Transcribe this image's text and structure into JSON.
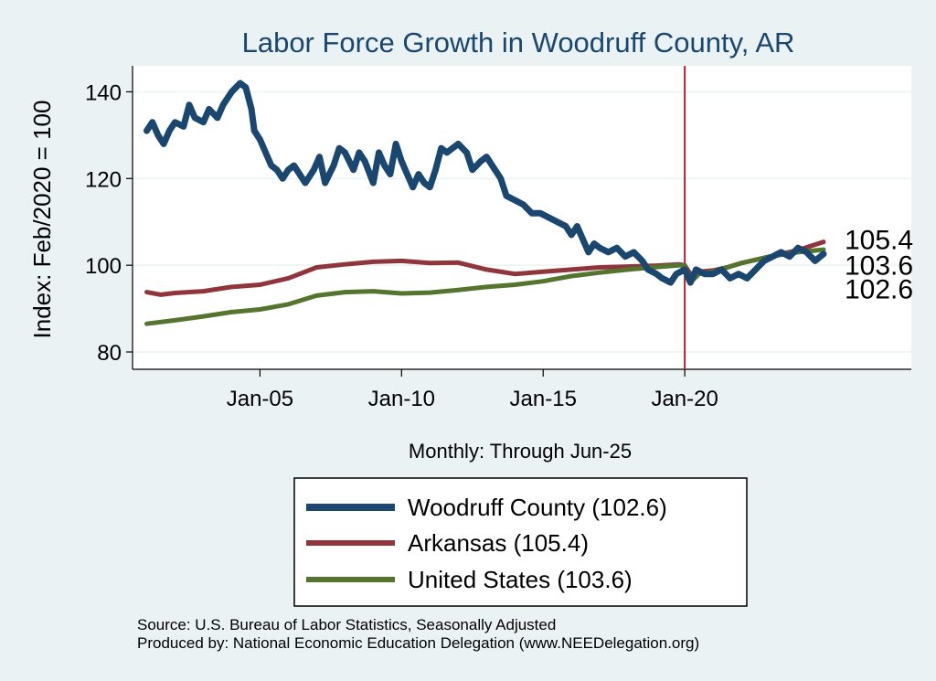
{
  "chart_data": {
    "type": "line",
    "title": "Labor Force Growth in Woodruff  County, AR",
    "xlabel": "Monthly: Through Jun-25",
    "ylabel": "Index: Feb/2020 = 100",
    "ylim": [
      76,
      146
    ],
    "yticks": [
      "80",
      "100",
      "120",
      "140"
    ],
    "xticks": [
      {
        "label": "Jan-05",
        "year": 2005.0
      },
      {
        "label": "Jan-10",
        "year": 2010.0
      },
      {
        "label": "Jan-15",
        "year": 2015.0
      },
      {
        "label": "Jan-20",
        "year": 2020.0
      }
    ],
    "xlim": [
      2000.5,
      2028.0
    ],
    "reference_line": {
      "year": 2020.0,
      "color": "#b22033"
    },
    "grid": "horizontal",
    "legend_position": "bottom",
    "series": [
      {
        "name": "Woodruff  County (102.6)",
        "color": "#1a476f",
        "end_label": "102.6",
        "points": [
          [
            2001.0,
            131
          ],
          [
            2001.2,
            133
          ],
          [
            2001.4,
            130
          ],
          [
            2001.6,
            128
          ],
          [
            2001.8,
            131
          ],
          [
            2002.0,
            133
          ],
          [
            2002.3,
            132
          ],
          [
            2002.5,
            137
          ],
          [
            2002.7,
            134
          ],
          [
            2003.0,
            133
          ],
          [
            2003.2,
            136
          ],
          [
            2003.5,
            134
          ],
          [
            2003.7,
            137
          ],
          [
            2004.0,
            140
          ],
          [
            2004.3,
            142
          ],
          [
            2004.5,
            141
          ],
          [
            2004.7,
            136
          ],
          [
            2004.8,
            131
          ],
          [
            2005.0,
            129
          ],
          [
            2005.2,
            126
          ],
          [
            2005.4,
            123
          ],
          [
            2005.6,
            122
          ],
          [
            2005.8,
            120
          ],
          [
            2006.0,
            122
          ],
          [
            2006.2,
            123
          ],
          [
            2006.4,
            121
          ],
          [
            2006.6,
            119
          ],
          [
            2006.9,
            122
          ],
          [
            2007.1,
            125
          ],
          [
            2007.3,
            119
          ],
          [
            2007.6,
            123
          ],
          [
            2007.8,
            127
          ],
          [
            2008.0,
            126
          ],
          [
            2008.3,
            122
          ],
          [
            2008.5,
            126
          ],
          [
            2008.7,
            124
          ],
          [
            2009.0,
            119
          ],
          [
            2009.2,
            126
          ],
          [
            2009.4,
            123
          ],
          [
            2009.6,
            121
          ],
          [
            2009.8,
            128
          ],
          [
            2010.0,
            124
          ],
          [
            2010.2,
            121
          ],
          [
            2010.4,
            118
          ],
          [
            2010.6,
            121
          ],
          [
            2010.8,
            119
          ],
          [
            2011.0,
            118
          ],
          [
            2011.2,
            122
          ],
          [
            2011.4,
            127
          ],
          [
            2011.6,
            126
          ],
          [
            2011.8,
            127
          ],
          [
            2012.0,
            128
          ],
          [
            2012.3,
            126
          ],
          [
            2012.5,
            122
          ],
          [
            2012.8,
            124
          ],
          [
            2013.0,
            125
          ],
          [
            2013.2,
            123
          ],
          [
            2013.5,
            120
          ],
          [
            2013.7,
            116
          ],
          [
            2014.0,
            115
          ],
          [
            2014.3,
            114
          ],
          [
            2014.6,
            112
          ],
          [
            2014.9,
            112
          ],
          [
            2015.2,
            111
          ],
          [
            2015.5,
            110
          ],
          [
            2015.8,
            109
          ],
          [
            2016.0,
            107
          ],
          [
            2016.2,
            109
          ],
          [
            2016.4,
            106
          ],
          [
            2016.6,
            103
          ],
          [
            2016.8,
            105
          ],
          [
            2017.0,
            104
          ],
          [
            2017.3,
            103
          ],
          [
            2017.6,
            104
          ],
          [
            2017.9,
            102
          ],
          [
            2018.2,
            103
          ],
          [
            2018.5,
            101
          ],
          [
            2018.7,
            99
          ],
          [
            2019.0,
            98
          ],
          [
            2019.2,
            97
          ],
          [
            2019.5,
            96
          ],
          [
            2019.7,
            98
          ],
          [
            2020.0,
            99
          ],
          [
            2020.2,
            96
          ],
          [
            2020.4,
            99
          ],
          [
            2020.7,
            98
          ],
          [
            2021.0,
            98
          ],
          [
            2021.3,
            99
          ],
          [
            2021.6,
            97
          ],
          [
            2021.9,
            98
          ],
          [
            2022.2,
            97
          ],
          [
            2022.5,
            99
          ],
          [
            2022.8,
            101
          ],
          [
            2023.1,
            102
          ],
          [
            2023.4,
            103
          ],
          [
            2023.7,
            102
          ],
          [
            2024.0,
            104
          ],
          [
            2024.3,
            103
          ],
          [
            2024.6,
            101
          ],
          [
            2024.9,
            102.6
          ]
        ]
      },
      {
        "name": "Arkansas (105.4)",
        "color": "#90353b",
        "end_label": "105.4",
        "points": [
          [
            2001.0,
            93.8
          ],
          [
            2001.5,
            93.2
          ],
          [
            2002.0,
            93.6
          ],
          [
            2003.0,
            94
          ],
          [
            2004.0,
            95
          ],
          [
            2005.0,
            95.5
          ],
          [
            2006.0,
            97
          ],
          [
            2007.0,
            99.5
          ],
          [
            2008.0,
            100.2
          ],
          [
            2009.0,
            100.8
          ],
          [
            2010.0,
            101
          ],
          [
            2011.0,
            100.5
          ],
          [
            2012.0,
            100.6
          ],
          [
            2013.0,
            99
          ],
          [
            2014.0,
            98
          ],
          [
            2015.0,
            98.5
          ],
          [
            2016.0,
            99
          ],
          [
            2017.0,
            99.5
          ],
          [
            2018.0,
            99.7
          ],
          [
            2019.0,
            99.9
          ],
          [
            2019.8,
            100.2
          ],
          [
            2020.0,
            100
          ],
          [
            2020.2,
            98
          ],
          [
            2020.5,
            98.5
          ],
          [
            2021.0,
            98.8
          ],
          [
            2021.5,
            99.5
          ],
          [
            2022.0,
            100.5
          ],
          [
            2023.0,
            102
          ],
          [
            2024.0,
            103.5
          ],
          [
            2024.9,
            105.4
          ]
        ]
      },
      {
        "name": "United States (103.6)",
        "color": "#55752f",
        "end_label": "103.6",
        "points": [
          [
            2001.0,
            86.5
          ],
          [
            2002.0,
            87.3
          ],
          [
            2003.0,
            88.2
          ],
          [
            2004.0,
            89.2
          ],
          [
            2005.0,
            89.8
          ],
          [
            2006.0,
            91
          ],
          [
            2007.0,
            93
          ],
          [
            2008.0,
            93.8
          ],
          [
            2009.0,
            94
          ],
          [
            2010.0,
            93.5
          ],
          [
            2011.0,
            93.7
          ],
          [
            2012.0,
            94.3
          ],
          [
            2013.0,
            95
          ],
          [
            2014.0,
            95.5
          ],
          [
            2015.0,
            96.3
          ],
          [
            2016.0,
            97.5
          ],
          [
            2017.0,
            98.3
          ],
          [
            2018.0,
            99
          ],
          [
            2019.0,
            99.6
          ],
          [
            2019.8,
            100
          ],
          [
            2020.0,
            100
          ],
          [
            2020.2,
            96
          ],
          [
            2020.5,
            98
          ],
          [
            2021.0,
            98.5
          ],
          [
            2022.0,
            100.5
          ],
          [
            2023.0,
            102
          ],
          [
            2024.0,
            103
          ],
          [
            2024.9,
            103.6
          ]
        ]
      }
    ]
  },
  "notes": {
    "source": "Source: U.S. Bureau of Labor Statistics, Seasonally Adjusted",
    "producer": "Produced by: National Economic Education Delegation (www.NEEDelegation.org)"
  }
}
